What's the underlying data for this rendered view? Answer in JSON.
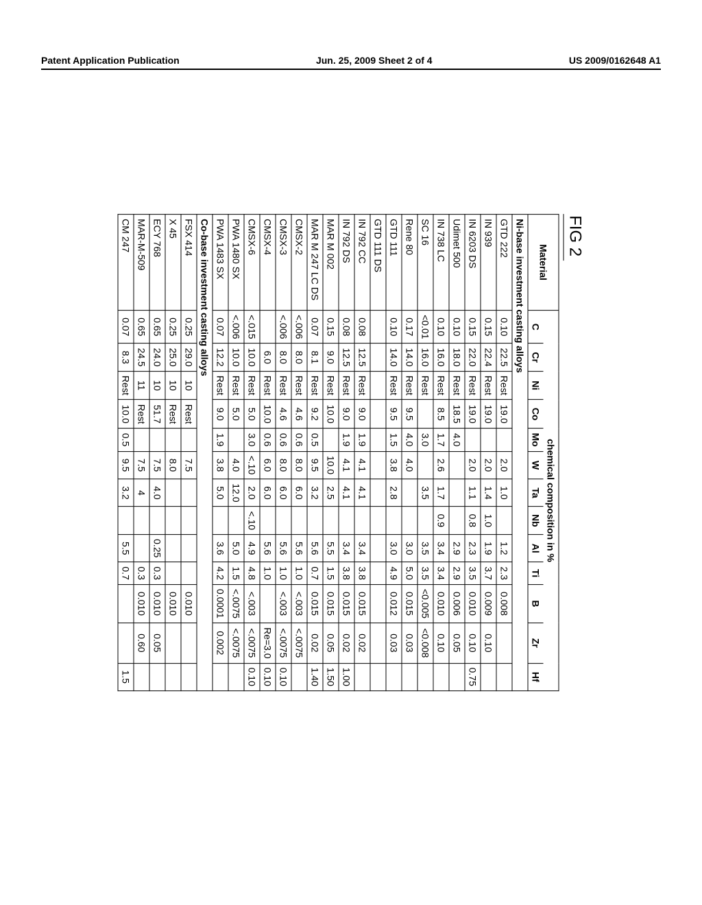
{
  "header": {
    "left": "Patent Application Publication",
    "center": "Jun. 25, 2009  Sheet 2 of 4",
    "right": "US 2009/0162648 A1"
  },
  "figureLabel": "FIG 2",
  "table": {
    "superHeader": {
      "material": "Material",
      "composition": "chemical composition in %"
    },
    "columns": [
      "C",
      "Cr",
      "Ni",
      "Co",
      "Mo",
      "W",
      "Ta",
      "Nb",
      "Al",
      "Ti",
      "B",
      "Zr",
      "Hf"
    ],
    "sections": [
      {
        "title": "Ni-base investment casting alloys",
        "rows": [
          {
            "mat": "GTD 222",
            "v": [
              "0.10",
              "22.5",
              "Rest",
              "19.0",
              "",
              "2.0",
              "1.0",
              "",
              "1.2",
              "2.3",
              "0.008",
              "",
              ""
            ]
          },
          {
            "mat": "IN 939",
            "v": [
              "0.15",
              "22.4",
              "Rest",
              "19.0",
              "",
              "2.0",
              "1.4",
              "1.0",
              "1.9",
              "3.7",
              "0.009",
              "0.10",
              ""
            ]
          },
          {
            "mat": "IN 6203 DS",
            "v": [
              "0.15",
              "22.0",
              "Rest",
              "19.0",
              "",
              "2.0",
              "1.1",
              "0.8",
              "2.3",
              "3.5",
              "0.010",
              "0.10",
              "0.75"
            ]
          },
          {
            "mat": "Udimet 500",
            "v": [
              "0.10",
              "18.0",
              "Rest",
              "18.5",
              "4.0",
              "",
              "",
              "",
              "2.9",
              "2.9",
              "0.006",
              "0.05",
              ""
            ]
          },
          {
            "mat": "IN 738 LC",
            "v": [
              "0.10",
              "16.0",
              "Rest",
              "8.5",
              "1.7",
              "2.6",
              "1.7",
              "0.9",
              "3.4",
              "3.4",
              "0.010",
              "0.10",
              ""
            ]
          },
          {
            "mat": "SC 16",
            "v": [
              "<0.01",
              "16.0",
              "Rest",
              "",
              "3.0",
              "",
              "3.5",
              "",
              "3.5",
              "3.5",
              "<0.005",
              "<0.008",
              ""
            ]
          },
          {
            "mat": "Rene 80",
            "v": [
              "0.17",
              "14.0",
              "Rest",
              "9.5",
              "4.0",
              "4.0",
              "",
              "",
              "3.0",
              "5.0",
              "0.015",
              "0.03",
              ""
            ]
          },
          {
            "mat": "GTD 111",
            "v": [
              "0.10",
              "14.0",
              "Rest",
              "9.5",
              "1.5",
              "3.8",
              "2.8",
              "",
              "3.0",
              "4.9",
              "0.012",
              "0.03",
              ""
            ]
          },
          {
            "mat": "GTD 111 DS",
            "v": [
              "",
              "",
              "",
              "",
              "",
              "",
              "",
              "",
              "",
              "",
              "",
              "",
              ""
            ]
          },
          {
            "mat": "IN 792 CC",
            "v": [
              "0.08",
              "12.5",
              "Rest",
              "9.0",
              "1.9",
              "4.1",
              "4.1",
              "",
              "3.4",
              "3.8",
              "0.015",
              "0.02",
              ""
            ]
          },
          {
            "mat": "IN 792 DS",
            "v": [
              "0.08",
              "12.5",
              "Rest",
              "9.0",
              "1.9",
              "4.1",
              "4.1",
              "",
              "3.4",
              "3.8",
              "0.015",
              "0.02",
              "1.00"
            ]
          },
          {
            "mat": "MAR M 002",
            "v": [
              "0.15",
              "9.0",
              "Rest",
              "10.0",
              "",
              "10.0",
              "2.5",
              "",
              "5.5",
              "1.5",
              "0.015",
              "0.05",
              "1.50"
            ]
          },
          {
            "mat": "MAR M 247 LC DS",
            "v": [
              "0.07",
              "8.1",
              "Rest",
              "9.2",
              "0.5",
              "9.5",
              "3.2",
              "",
              "5.6",
              "0.7",
              "0.015",
              "0.02",
              "1.40"
            ]
          },
          {
            "mat": "CMSX-2",
            "v": [
              "<.006",
              "8.0",
              "Rest",
              "4.6",
              "0.6",
              "8.0",
              "6.0",
              "",
              "5.6",
              "1.0",
              "<.003",
              "<.0075",
              ""
            ]
          },
          {
            "mat": "CMSX-3",
            "v": [
              "<.006",
              "8.0",
              "Rest",
              "4.6",
              "0.6",
              "8.0",
              "6.0",
              "",
              "5.6",
              "1.0",
              "<.003",
              "<.0075",
              "0.10"
            ]
          },
          {
            "mat": "CMSX-4",
            "v": [
              "",
              "6.0",
              "Rest",
              "10.0",
              "0.6",
              "6.0",
              "6.0",
              "",
              "5.6",
              "1.0",
              "",
              "Re=3.0",
              "0.10"
            ]
          },
          {
            "mat": "CMSX-6",
            "v": [
              "<.015",
              "10.0",
              "Rest",
              "5.0",
              "3.0",
              "<.10",
              "2.0",
              "<.10",
              "4.9",
              "4.8",
              "<.003",
              "<.0075",
              "0.10"
            ]
          },
          {
            "mat": "PWA 1480 SX",
            "v": [
              "<.006",
              "10.0",
              "Rest",
              "5.0",
              "",
              "4.0",
              "12.0",
              "",
              "5.0",
              "1.5",
              "<.0075",
              "<.0075",
              ""
            ]
          },
          {
            "mat": "PWA 1483 SX",
            "v": [
              "0.07",
              "12.2",
              "Rest",
              "9.0",
              "1.9",
              "3.8",
              "5.0",
              "",
              "3.6",
              "4.2",
              "0.0001",
              "0.002",
              ""
            ]
          }
        ]
      },
      {
        "title": "Co-base investment casting alloys",
        "rows": [
          {
            "mat": "FSX 414",
            "v": [
              "0.25",
              "29.0",
              "10",
              "Rest",
              "",
              "7.5",
              "",
              "",
              "",
              "",
              "0.010",
              "",
              ""
            ]
          },
          {
            "mat": "X 45",
            "v": [
              "0.25",
              "25.0",
              "10",
              "Rest",
              "",
              "8.0",
              "",
              "",
              "",
              "",
              "0.010",
              "",
              ""
            ]
          },
          {
            "mat": "ECY 768",
            "v": [
              "0.65",
              "24.0",
              "10",
              "51.7",
              "",
              "7.5",
              "4.0",
              "",
              "0.25",
              "0.3",
              "0.010",
              "0.05",
              ""
            ]
          },
          {
            "mat": "MAR-M-509",
            "v": [
              "0.65",
              "24.5",
              "11",
              "Rest",
              "",
              "7.5",
              "4",
              "",
              "",
              "0.3",
              "0.010",
              "0.60",
              ""
            ]
          },
          {
            "mat": "CM 247",
            "v": [
              "0.07",
              "8.3",
              "Rest",
              "10.0",
              "0.5",
              "9.5",
              "3.2",
              "",
              "5.5",
              "0.7",
              "",
              "",
              "1.5"
            ]
          }
        ]
      }
    ]
  },
  "style": {
    "bg": "#ffffff",
    "border": "#000000",
    "font": "Arial",
    "header_fontsize": 14,
    "fig_fontsize": 24,
    "cell_fontsize": 14
  }
}
